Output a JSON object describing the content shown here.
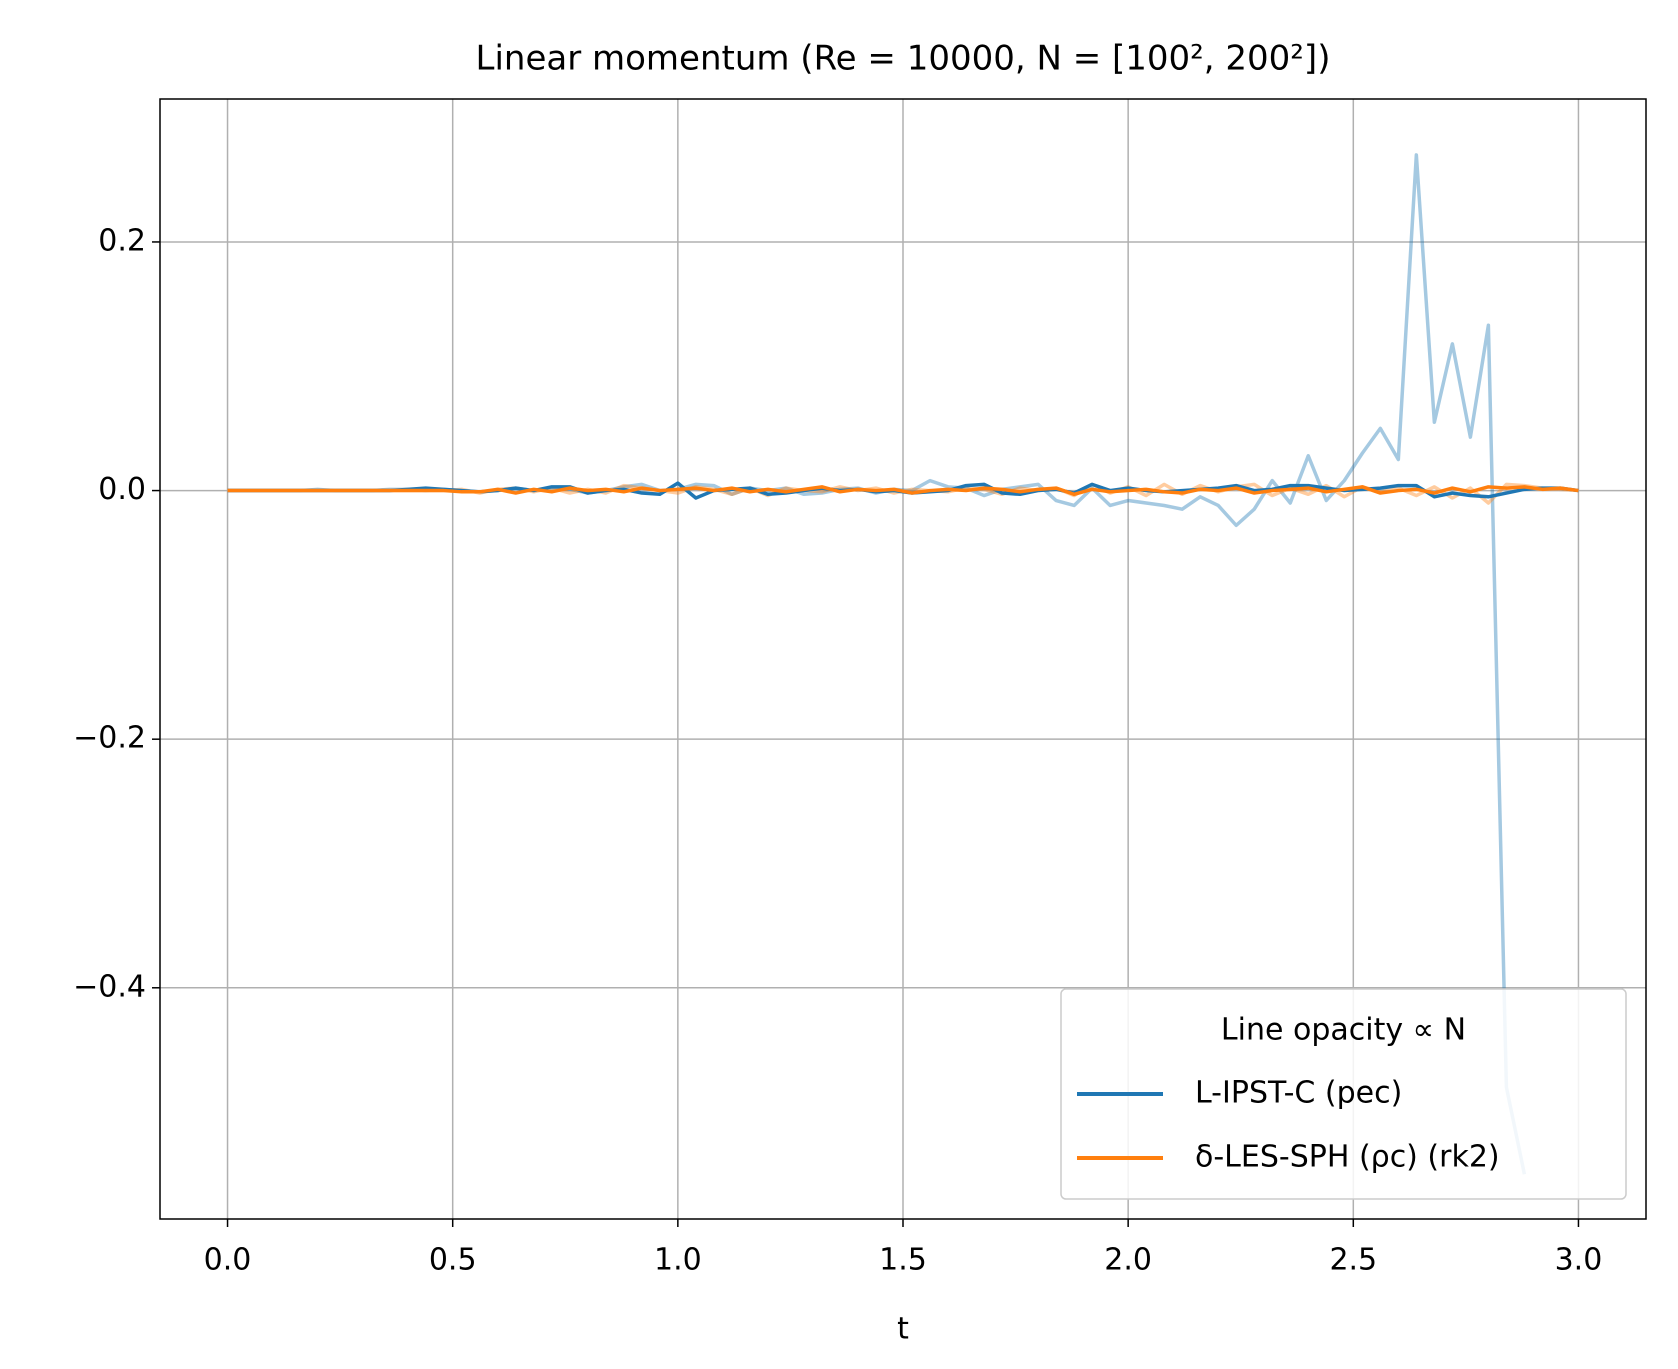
{
  "chart_data": {
    "type": "line",
    "title": "Linear momentum  (Re = 10000, N = [100², 200²])",
    "x_label": "t",
    "legend_title": "Line opacity ∝ N",
    "legend": "lower right",
    "grid": true,
    "xlim": [
      -0.15,
      3.15
    ],
    "ylim": [
      -0.586,
      0.315
    ],
    "xticks": [
      {
        "value": 0,
        "label": "0.0"
      },
      {
        "value": 0.5,
        "label": "0.5"
      },
      {
        "value": 1,
        "label": "1.0"
      },
      {
        "value": 1.5,
        "label": "1.5"
      },
      {
        "value": 2,
        "label": "2.0"
      },
      {
        "value": 2.5,
        "label": "2.5"
      },
      {
        "value": 3,
        "label": "3.0"
      }
    ],
    "yticks": [
      {
        "value": -0.4,
        "label": "−0.4"
      },
      {
        "value": -0.2,
        "label": "−0.2"
      },
      {
        "value": 0,
        "label": "0.0"
      },
      0.2
    ],
    "x": [
      0,
      0.04,
      0.08,
      0.12,
      0.16,
      0.2,
      0.24,
      0.28,
      0.32,
      0.36,
      0.4,
      0.44,
      0.48,
      0.52,
      0.56,
      0.6,
      0.64,
      0.68,
      0.72,
      0.76,
      0.8,
      0.84,
      0.88,
      0.92,
      0.96,
      1,
      1.04,
      1.08,
      1.12,
      1.16,
      1.2,
      1.24,
      1.28,
      1.32,
      1.36,
      1.4,
      1.44,
      1.48,
      1.52,
      1.56,
      1.6,
      1.64,
      1.68,
      1.72,
      1.76,
      1.8,
      1.84,
      1.88,
      1.92,
      1.96,
      2,
      2.04,
      2.08,
      2.12,
      2.16,
      2.2,
      2.24,
      2.28,
      2.32,
      2.36,
      2.4,
      2.44,
      2.48,
      2.52,
      2.56,
      2.6,
      2.64,
      2.68,
      2.72,
      2.76,
      2.8,
      2.84,
      2.88,
      2.92,
      2.96,
      3
    ],
    "series": [
      {
        "name": "L-IPST-C (pec)",
        "color": "#1f77b4",
        "runs": [
          {
            "alpha": 0.4,
            "values": [
              0,
              0,
              0,
              0,
              0,
              0.001,
              0,
              0,
              0,
              0.001,
              0.001,
              0,
              0.001,
              0,
              -0.001,
              0,
              0.002,
              0,
              0.001,
              0.001,
              -0.002,
              0,
              0.003,
              0.005,
              0,
              0.001,
              0.005,
              0.004,
              -0.003,
              0.002,
              0,
              0.002,
              -0.003,
              -0.002,
              0.001,
              0.002,
              -0.002,
              0.001,
              0,
              0.008,
              0.003,
              0.002,
              -0.004,
              0.001,
              0.003,
              0.005,
              -0.008,
              -0.012,
              0.002,
              -0.012,
              -0.008,
              -0.01,
              -0.012,
              -0.015,
              -0.005,
              -0.012,
              -0.028,
              -0.015,
              0.008,
              -0.01,
              0.028,
              -0.008,
              0.008,
              0.03,
              0.05,
              0.025,
              0.27,
              0.055,
              0.118,
              0.043,
              0.133,
              -0.48,
              -0.55,
              null,
              null,
              null
            ]
          },
          {
            "alpha": 1,
            "values": [
              0,
              0,
              0,
              0,
              0,
              0,
              0,
              0,
              0,
              0,
              0.001,
              0.002,
              0.001,
              0,
              -0.001,
              0,
              0.002,
              0,
              0.003,
              0.003,
              -0.002,
              0,
              0.001,
              -0.002,
              -0.003,
              0.006,
              -0.006,
              0,
              0.001,
              0.002,
              -0.003,
              -0.002,
              0,
              0.002,
              0,
              0.001,
              -0.001,
              0,
              -0.002,
              -0.001,
              0,
              0.004,
              0.005,
              -0.002,
              -0.003,
              0,
              0.001,
              -0.002,
              0.005,
              0,
              0.002,
              0,
              -0.001,
              0,
              0.001,
              0.002,
              0.004,
              0,
              0.001,
              0.004,
              0.004,
              0.002,
              0,
              0.001,
              0.002,
              0.004,
              0.004,
              -0.005,
              -0.002,
              -0.004,
              -0.005,
              -0.002,
              0.001,
              0.002,
              0.002,
              0
            ]
          }
        ]
      },
      {
        "name": "δ-LES-SPH (ρc) (rk2)",
        "color": "#ff7f0e",
        "runs": [
          {
            "alpha": 0.4,
            "values": [
              0,
              0,
              0,
              0,
              0,
              0,
              0,
              0,
              0,
              0,
              0,
              0,
              0,
              0.001,
              -0.002,
              0.001,
              0.002,
              -0.001,
              0.002,
              -0.002,
              0.001,
              -0.002,
              0.004,
              0.002,
              0,
              -0.002,
              0.003,
              0.001,
              -0.003,
              0.002,
              -0.004,
              0.002,
              0,
              -0.001,
              0.003,
              0,
              0.002,
              -0.002,
              0.001,
              0,
              -0.001,
              0.002,
              0.001,
              -0.003,
              0.002,
              0,
              0.002,
              -0.004,
              0.005,
              -0.002,
              0.003,
              -0.004,
              0.005,
              -0.003,
              0.004,
              -0.001,
              0.003,
              0.005,
              -0.004,
              0.002,
              -0.003,
              0.004,
              -0.005,
              0.003,
              -0.001,
              0.002,
              -0.004,
              0.003,
              -0.006,
              0.002,
              -0.01,
              0.005,
              0.004,
              0.002,
              0.001,
              0
            ]
          },
          {
            "alpha": 1,
            "values": [
              0,
              0,
              0,
              0,
              0,
              0,
              0,
              0,
              0,
              0,
              0,
              0,
              0,
              -0.001,
              -0.001,
              0.001,
              -0.002,
              0.001,
              -0.001,
              0.002,
              0,
              0.001,
              -0.001,
              0.002,
              0,
              0.001,
              0.002,
              0,
              0.002,
              -0.001,
              0.001,
              -0.001,
              0.001,
              0.003,
              -0.001,
              0.001,
              0,
              0.001,
              -0.002,
              0,
              0.001,
              0,
              0.002,
              0.001,
              -0.001,
              0.001,
              0.002,
              -0.003,
              0.001,
              -0.001,
              0,
              0.001,
              -0.001,
              -0.002,
              0.001,
              0,
              0.002,
              -0.002,
              0,
              0.001,
              0.002,
              -0.001,
              0.001,
              0.003,
              -0.002,
              0,
              0.001,
              -0.002,
              0.002,
              -0.001,
              0.003,
              0.002,
              0.003,
              0.001,
              0.002,
              0
            ]
          }
        ]
      }
    ]
  }
}
